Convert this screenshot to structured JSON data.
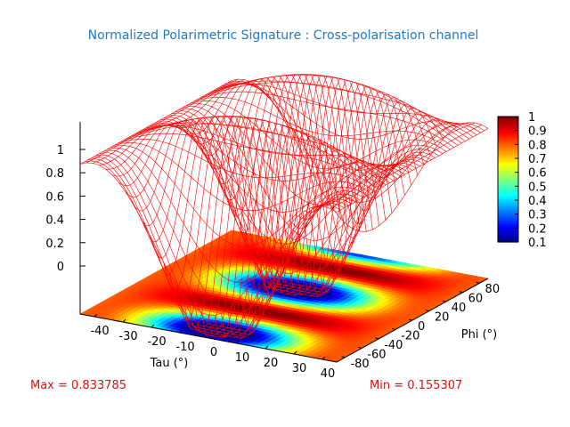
{
  "chart_data": {
    "type": "surface",
    "title": "Normalized Polarimetric Signature : Cross-polarisation channel",
    "xlabel": "Tau (°)",
    "ylabel": "Phi (°)",
    "x_ticks": [
      "-40",
      "-30",
      "-20",
      "-10",
      "0",
      "10",
      "20",
      "30",
      "40"
    ],
    "y_ticks": [
      "-80",
      "-60",
      "-40",
      "-20",
      "0",
      "20",
      "40",
      "60",
      "80"
    ],
    "z_ticks": [
      "0",
      "0.2",
      "0.4",
      "0.6",
      "0.8",
      "1"
    ],
    "xlim": [
      -45,
      45
    ],
    "ylim": [
      -90,
      90
    ],
    "zlim": [
      0,
      1
    ],
    "colorbar_ticks": [
      "0.1",
      "0.2",
      "0.3",
      "0.4",
      "0.5",
      "0.6",
      "0.7",
      "0.8",
      "0.9",
      "1"
    ],
    "colorbar_range": [
      0.1,
      1
    ],
    "max_label": "Max = 0.833785",
    "min_label": "Min = 0.155307",
    "grid": false,
    "colors": {
      "title": "#1f78c8",
      "mesh": "#ff0000",
      "stats": "#e01010"
    }
  }
}
